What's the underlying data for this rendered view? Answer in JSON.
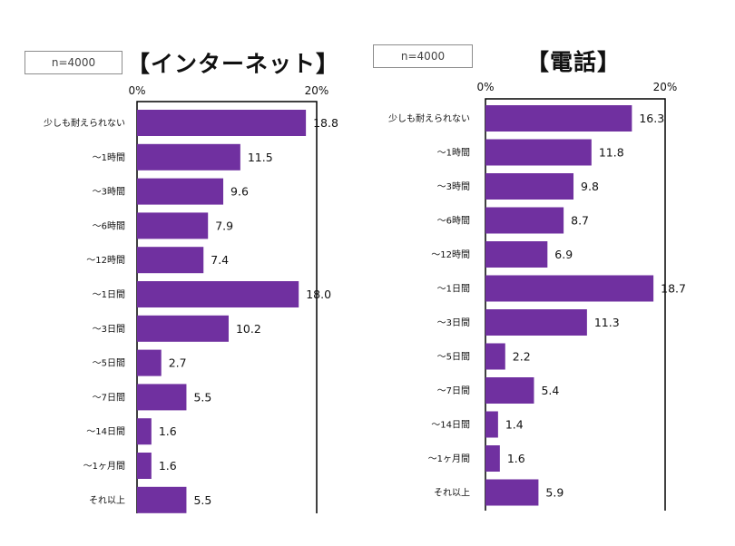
{
  "chart_data": [
    {
      "type": "bar",
      "orientation": "horizontal",
      "title": "【インターネット】",
      "sample_label": "n=4000",
      "tick_labels": [
        "0%",
        "20%"
      ],
      "xlim": [
        0,
        20
      ],
      "unit": "%",
      "categories": [
        "少しも耐えられない",
        "～1時間",
        "～3時間",
        "～6時間",
        "～12時間",
        "～1日間",
        "～3日間",
        "～5日間",
        "～7日間",
        "～14日間",
        "～1ヶ月間",
        "それ以上"
      ],
      "values": [
        18.8,
        11.5,
        9.6,
        7.9,
        7.4,
        18.0,
        10.2,
        2.7,
        5.5,
        1.6,
        1.6,
        5.5
      ],
      "value_labels": [
        "18.8",
        "11.5",
        "9.6",
        "7.9",
        "7.4",
        "18.0",
        "10.2",
        "2.7",
        "5.5",
        "1.6",
        "1.6",
        "5.5"
      ],
      "bar_color": "#7030a0",
      "grid": false,
      "legend": "none"
    },
    {
      "type": "bar",
      "orientation": "horizontal",
      "title": "【電話】",
      "sample_label": "n=4000",
      "tick_labels": [
        "0%",
        "20%"
      ],
      "xlim": [
        0,
        20
      ],
      "unit": "%",
      "categories": [
        "少しも耐えられない",
        "～1時間",
        "～3時間",
        "～6時間",
        "～12時間",
        "～1日間",
        "～3日間",
        "～5日間",
        "～7日間",
        "～14日間",
        "～1ヶ月間",
        "それ以上"
      ],
      "values": [
        16.3,
        11.8,
        9.8,
        8.7,
        6.9,
        18.7,
        11.3,
        2.2,
        5.4,
        1.4,
        1.6,
        5.9
      ],
      "value_labels": [
        "16.3",
        "11.8",
        "9.8",
        "8.7",
        "6.9",
        "18.7",
        "11.3",
        "2.2",
        "5.4",
        "1.4",
        "1.6",
        "5.9"
      ],
      "bar_color": "#7030a0",
      "grid": false,
      "legend": "none"
    }
  ]
}
